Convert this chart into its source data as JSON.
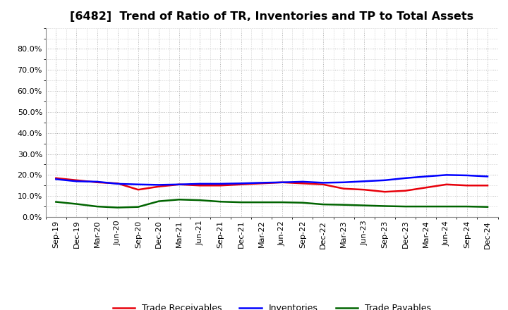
{
  "title": "[6482]  Trend of Ratio of TR, Inventories and TP to Total Assets",
  "x_labels": [
    "Sep-19",
    "Dec-19",
    "Mar-20",
    "Jun-20",
    "Sep-20",
    "Dec-20",
    "Mar-21",
    "Jun-21",
    "Sep-21",
    "Dec-21",
    "Mar-22",
    "Jun-22",
    "Sep-22",
    "Dec-22",
    "Mar-23",
    "Jun-23",
    "Sep-23",
    "Dec-23",
    "Mar-24",
    "Jun-24",
    "Sep-24",
    "Dec-24"
  ],
  "trade_receivables": [
    0.185,
    0.175,
    0.165,
    0.16,
    0.13,
    0.145,
    0.155,
    0.15,
    0.15,
    0.155,
    0.16,
    0.165,
    0.16,
    0.155,
    0.135,
    0.13,
    0.12,
    0.125,
    0.14,
    0.155,
    0.15,
    0.15
  ],
  "inventories": [
    0.18,
    0.17,
    0.168,
    0.158,
    0.155,
    0.153,
    0.155,
    0.158,
    0.158,
    0.16,
    0.163,
    0.165,
    0.168,
    0.163,
    0.165,
    0.17,
    0.175,
    0.185,
    0.193,
    0.2,
    0.198,
    0.193
  ],
  "trade_payables": [
    0.072,
    0.062,
    0.05,
    0.045,
    0.048,
    0.075,
    0.083,
    0.08,
    0.073,
    0.07,
    0.07,
    0.07,
    0.068,
    0.06,
    0.058,
    0.055,
    0.052,
    0.05,
    0.05,
    0.05,
    0.05,
    0.048
  ],
  "tr_color": "#e8000a",
  "inv_color": "#0000ff",
  "tp_color": "#006400",
  "ylim": [
    0.0,
    0.9
  ],
  "yticks": [
    0.0,
    0.1,
    0.2,
    0.3,
    0.4,
    0.5,
    0.6,
    0.7,
    0.8
  ],
  "background_color": "#ffffff",
  "grid_color": "#b0b0b0",
  "line_width": 1.8,
  "title_fontsize": 11.5,
  "tick_fontsize": 8,
  "legend_fontsize": 9
}
